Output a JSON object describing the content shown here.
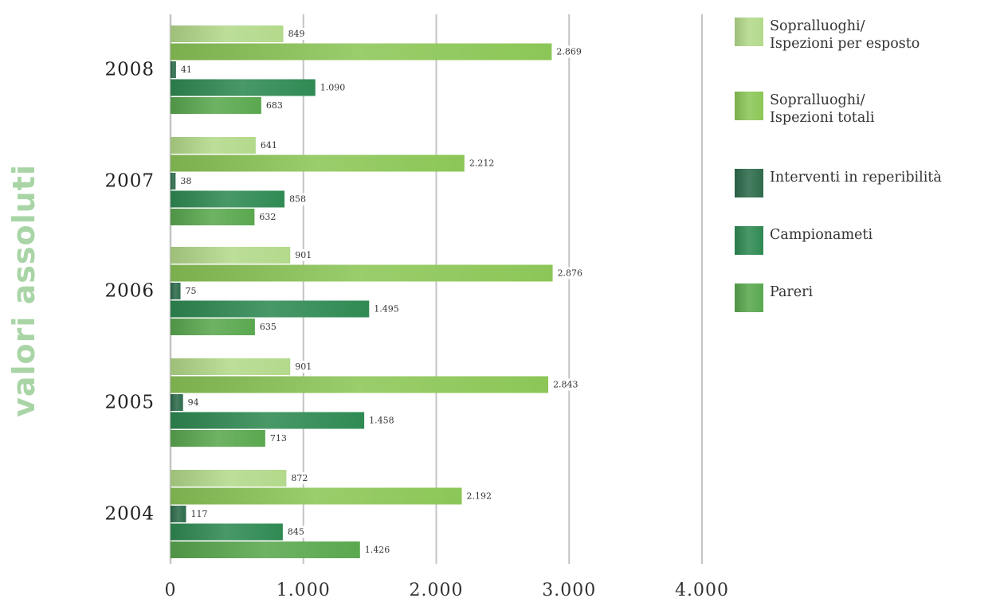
{
  "chart_data": {
    "type": "bar",
    "orientation": "horizontal",
    "ylabel": "valori assoluti",
    "categories": [
      "2008",
      "2007",
      "2006",
      "2005",
      "2004"
    ],
    "series": [
      {
        "name": "Sopralluoghi/\nIspezioni per esposto",
        "color": "#b3d98b",
        "values": [
          849,
          641,
          901,
          901,
          872
        ],
        "labels": [
          "849",
          "641",
          "901",
          "901",
          "872"
        ]
      },
      {
        "name": "Sopralluoghi/\nIspezioni totali",
        "color": "#8cc657",
        "values": [
          2869,
          2212,
          2876,
          2843,
          2192
        ],
        "labels": [
          "2.869",
          "2.212",
          "2.876",
          "2.843",
          "2.192"
        ]
      },
      {
        "name": "Interventi in reperibilità",
        "color": "#2e6b4c",
        "values": [
          41,
          38,
          75,
          94,
          117
        ],
        "labels": [
          "41",
          "38",
          "75",
          "94",
          "117"
        ]
      },
      {
        "name": "Campionameti",
        "color": "#2f8a53",
        "values": [
          1090,
          858,
          1495,
          1458,
          845
        ],
        "labels": [
          "1.090",
          "858",
          "1.495",
          "1.458",
          "845"
        ]
      },
      {
        "name": "Pareri",
        "color": "#5aa84f",
        "values": [
          683,
          632,
          635,
          713,
          1426
        ],
        "labels": [
          "683",
          "632",
          "635",
          "713",
          "1.426"
        ]
      }
    ],
    "xlim": [
      0,
      4000
    ],
    "xticks": [
      0,
      1000,
      2000,
      3000,
      4000
    ],
    "xtick_labels": [
      "0",
      "1.000",
      "2.000",
      "3.000",
      "4.000"
    ],
    "grid": "vertical",
    "legend": "right"
  }
}
